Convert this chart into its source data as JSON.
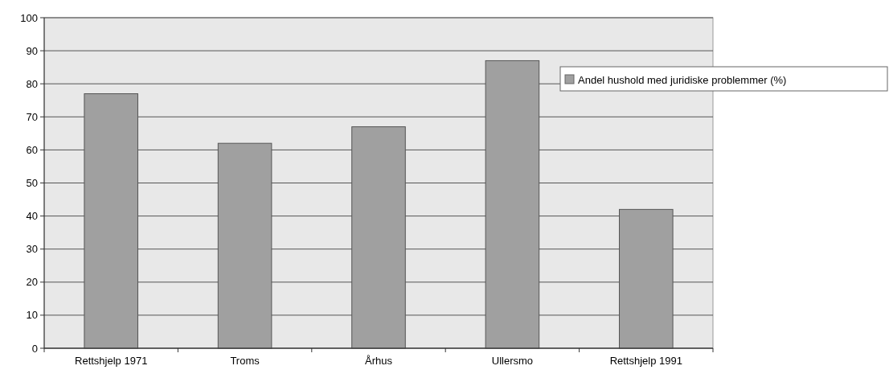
{
  "chart_data": {
    "type": "bar",
    "categories": [
      "Rettshjelp 1971",
      "Troms",
      "Århus",
      "Ullersmo",
      "Rettshjelp 1991"
    ],
    "series": [
      {
        "name": "Andel hushold med juridiske problemmer (%)",
        "color": "#a0a0a0",
        "values": [
          77,
          62,
          67,
          87,
          42
        ]
      }
    ],
    "ylim": [
      0,
      100
    ],
    "yticks": [
      0,
      10,
      20,
      30,
      40,
      50,
      60,
      70,
      80,
      90,
      100
    ],
    "grid": "y",
    "legend": "right"
  }
}
